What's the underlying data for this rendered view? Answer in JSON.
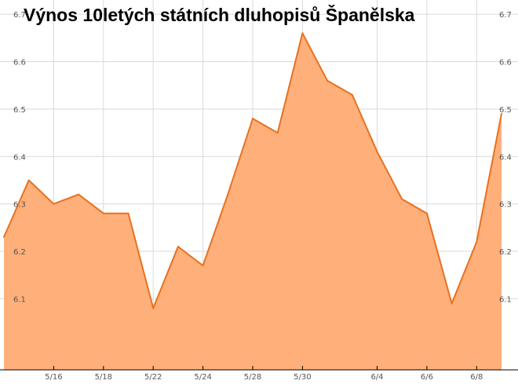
{
  "chart_data": {
    "type": "area",
    "title": "Výnos 10letých státních dluhopisů Španělska",
    "xlabel": "",
    "ylabel": "",
    "x": [
      "5/14",
      "5/15",
      "5/16",
      "5/17",
      "5/18",
      "5/21",
      "5/22",
      "5/23",
      "5/24",
      "5/25",
      "5/28",
      "5/29",
      "5/30",
      "5/31",
      "6/1",
      "6/4",
      "6/5",
      "6/6",
      "6/7",
      "6/8",
      "6/11"
    ],
    "values": [
      6.23,
      6.35,
      6.3,
      6.32,
      6.28,
      6.28,
      6.08,
      6.21,
      6.17,
      6.32,
      6.48,
      6.45,
      6.66,
      6.56,
      6.53,
      6.41,
      6.31,
      6.28,
      6.09,
      6.22,
      6.49
    ],
    "x_tick_labels": [
      "5/16",
      "5/18",
      "5/22",
      "5/24",
      "5/28",
      "5/30",
      "6/4",
      "6/6",
      "6/8"
    ],
    "y_ticks": [
      "6.1",
      "6.2",
      "6.3",
      "6.4",
      "6.5",
      "6.6",
      "6.7"
    ],
    "ylim": [
      5.95,
      6.73
    ],
    "grid": true,
    "y_axis_labels_both_sides": true,
    "legend": "none",
    "colors": {
      "fill": "#FFAF7A",
      "line": "#E8711F",
      "grid": "#D9D9D9",
      "axis": "#000000"
    }
  }
}
